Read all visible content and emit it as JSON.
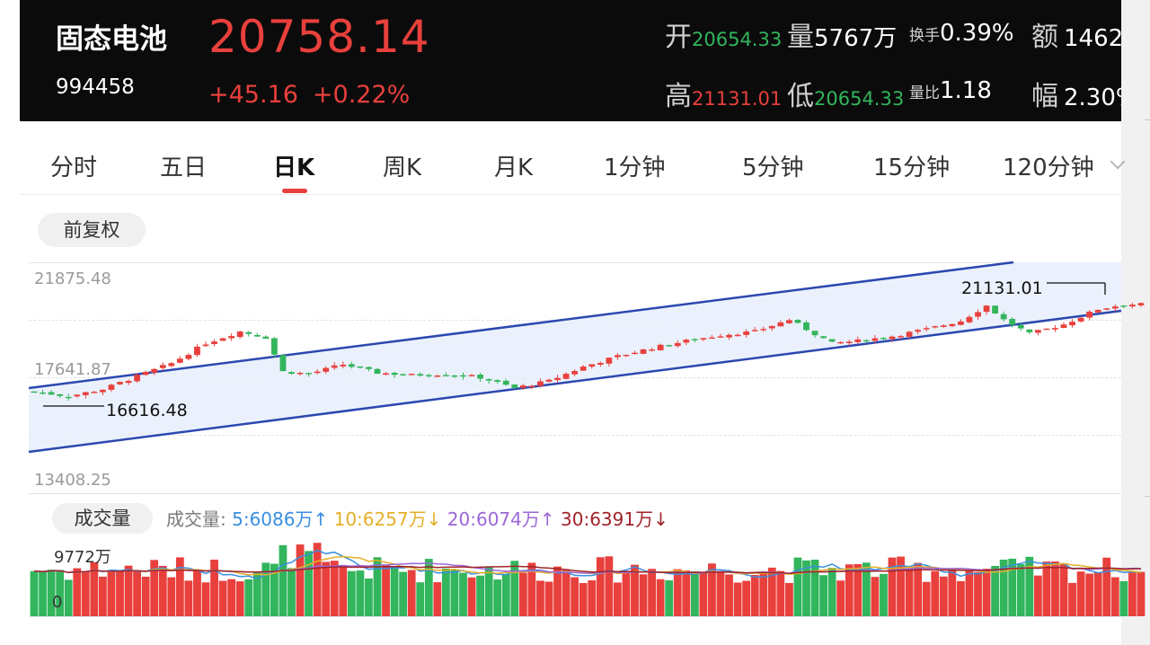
{
  "header": {
    "name": "固态电池",
    "code": "994458",
    "price": "20758.14",
    "change": "+45.16",
    "change_pct": "+0.22%",
    "open_label": "开",
    "open_value": "20654.33",
    "volume_label": "量",
    "volume_value": "5767万",
    "turnover_label": "换手",
    "turnover_value": "0.39%",
    "amount_label": "额",
    "amount_value": "1462",
    "high_label": "高",
    "high_value": "21131.01",
    "low_label": "低",
    "low_value": "20654.33",
    "ratio_label": "量比",
    "ratio_value": "1.18",
    "amp_label": "幅",
    "amp_value": "2.30%"
  },
  "tabs": [
    "分时",
    "五日",
    "日K",
    "周K",
    "月K",
    "1分钟",
    "5分钟",
    "15分钟",
    "120分钟"
  ],
  "active_tab": "日K",
  "adjust_button": "前复权",
  "price_axis": {
    "top": "21875.48",
    "mid": "17641.87",
    "bottom": "13408.25"
  },
  "annotations": {
    "high": "21131.01",
    "low": "16616.48"
  },
  "volume": {
    "button": "成交量",
    "legend_title": "成交量:",
    "ma5": "5:6086万↑",
    "ma10": "10:6257万↓",
    "ma20": "20:6074万↑",
    "ma30": "30:6391万↓",
    "max_label": "9772万",
    "zero_label": "0"
  },
  "colors": {
    "up": "#e8403c",
    "down": "#32b55c",
    "channel": "#2b48b0",
    "ma5": "#3a8fe0",
    "ma10": "#e3b02a",
    "ma20": "#9a67d8",
    "ma30": "#a0242a"
  },
  "chart_data": {
    "type": "candlestick",
    "price_range": [
      13408.25,
      21875.48
    ],
    "volume_range": [
      0,
      9772
    ],
    "close_points": [
      [
        0,
        17150
      ],
      [
        4,
        16950
      ],
      [
        8,
        17250
      ],
      [
        12,
        17800
      ],
      [
        16,
        18350
      ],
      [
        20,
        19200
      ],
      [
        24,
        19700
      ],
      [
        27,
        19450
      ],
      [
        29,
        18000
      ],
      [
        32,
        17900
      ],
      [
        36,
        18300
      ],
      [
        40,
        17950
      ],
      [
        44,
        17850
      ],
      [
        48,
        17900
      ],
      [
        52,
        17750
      ],
      [
        56,
        17300
      ],
      [
        60,
        17600
      ],
      [
        64,
        18200
      ],
      [
        68,
        18650
      ],
      [
        72,
        19000
      ],
      [
        76,
        19300
      ],
      [
        80,
        19550
      ],
      [
        84,
        19700
      ],
      [
        88,
        20200
      ],
      [
        90,
        19800
      ],
      [
        93,
        19200
      ],
      [
        96,
        19300
      ],
      [
        100,
        19500
      ],
      [
        104,
        19800
      ],
      [
        108,
        20150
      ],
      [
        111,
        20800
      ],
      [
        113,
        20200
      ],
      [
        116,
        19600
      ],
      [
        120,
        20000
      ],
      [
        124,
        20650
      ],
      [
        127,
        20850
      ]
    ]
  }
}
